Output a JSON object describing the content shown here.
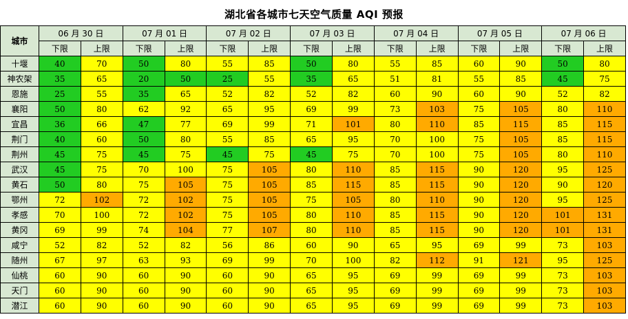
{
  "title": "湖北省各城市七天空气质量 AQI 预报",
  "city_header": "城市",
  "dates": [
    "06 月 30 日",
    "07 月 01 日",
    "07 月 02 日",
    "07 月 03 日",
    "07 月 04 日",
    "07 月 05 日",
    "07 月 06 日"
  ],
  "low_label": "下限",
  "high_label": "上限",
  "colors": {
    "good": "#22cc22",
    "moderate": "#ffff00",
    "light_pollution": "#ffaa00"
  },
  "rows": [
    {
      "city": "十堰",
      "values": [
        40,
        70,
        50,
        80,
        55,
        85,
        50,
        80,
        55,
        85,
        60,
        90,
        50,
        80
      ]
    },
    {
      "city": "神农架",
      "values": [
        35,
        65,
        20,
        50,
        25,
        55,
        35,
        65,
        51,
        81,
        55,
        85,
        45,
        75
      ]
    },
    {
      "city": "恩施",
      "values": [
        25,
        55,
        35,
        65,
        52,
        82,
        52,
        82,
        60,
        90,
        60,
        90,
        52,
        82
      ]
    },
    {
      "city": "襄阳",
      "values": [
        50,
        80,
        62,
        92,
        65,
        95,
        69,
        99,
        73,
        103,
        75,
        105,
        80,
        110
      ]
    },
    {
      "city": "宜昌",
      "values": [
        36,
        66,
        47,
        77,
        69,
        99,
        71,
        101,
        80,
        110,
        85,
        115,
        85,
        115
      ]
    },
    {
      "city": "荆门",
      "values": [
        40,
        60,
        50,
        80,
        55,
        85,
        65,
        95,
        70,
        100,
        75,
        105,
        85,
        115
      ]
    },
    {
      "city": "荆州",
      "values": [
        45,
        75,
        45,
        75,
        45,
        75,
        45,
        75,
        70,
        100,
        75,
        105,
        80,
        110
      ]
    },
    {
      "city": "武汉",
      "values": [
        45,
        75,
        70,
        100,
        75,
        105,
        80,
        110,
        85,
        115,
        90,
        120,
        95,
        125
      ]
    },
    {
      "city": "黄石",
      "values": [
        50,
        80,
        75,
        105,
        75,
        105,
        85,
        115,
        85,
        115,
        90,
        120,
        90,
        120
      ]
    },
    {
      "city": "鄂州",
      "values": [
        72,
        102,
        72,
        102,
        75,
        105,
        75,
        105,
        80,
        110,
        90,
        120,
        95,
        125
      ]
    },
    {
      "city": "孝感",
      "values": [
        70,
        100,
        72,
        102,
        75,
        105,
        80,
        110,
        85,
        115,
        90,
        120,
        101,
        131
      ]
    },
    {
      "city": "黄冈",
      "values": [
        69,
        99,
        74,
        104,
        77,
        107,
        80,
        110,
        85,
        115,
        90,
        120,
        101,
        131
      ]
    },
    {
      "city": "咸宁",
      "values": [
        52,
        82,
        52,
        82,
        56,
        86,
        60,
        90,
        65,
        95,
        69,
        99,
        73,
        103
      ]
    },
    {
      "city": "随州",
      "values": [
        67,
        97,
        63,
        93,
        69,
        99,
        70,
        100,
        82,
        112,
        91,
        121,
        95,
        125
      ]
    },
    {
      "city": "仙桃",
      "values": [
        60,
        90,
        60,
        90,
        60,
        90,
        65,
        95,
        69,
        99,
        69,
        99,
        73,
        103
      ]
    },
    {
      "city": "天门",
      "values": [
        60,
        90,
        60,
        90,
        60,
        90,
        65,
        95,
        69,
        99,
        69,
        99,
        73,
        103
      ]
    },
    {
      "city": "潜江",
      "values": [
        60,
        90,
        60,
        90,
        60,
        90,
        65,
        95,
        69,
        99,
        69,
        99,
        73,
        103
      ]
    }
  ]
}
